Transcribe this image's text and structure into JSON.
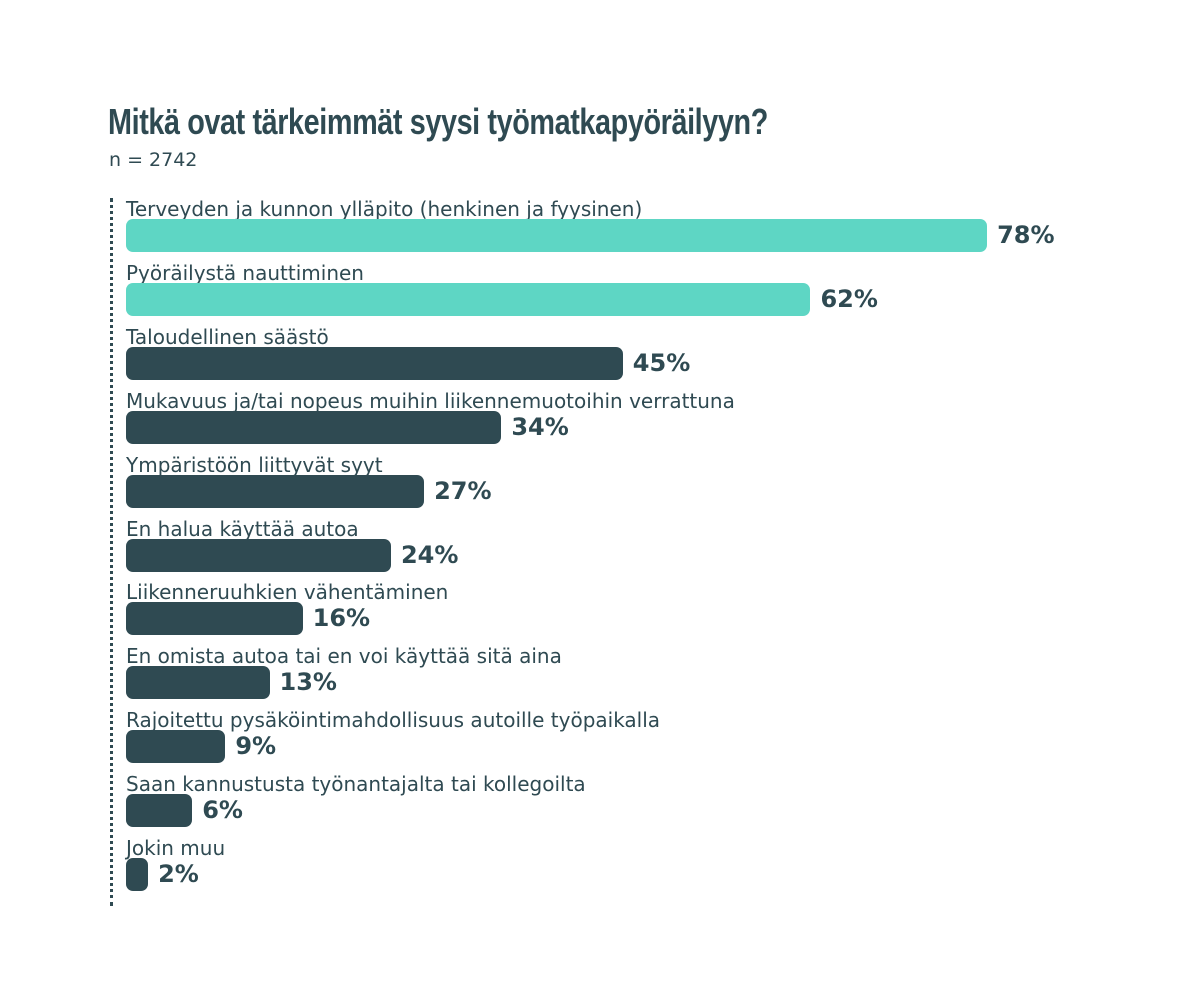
{
  "chart_data": {
    "type": "bar",
    "orientation": "horizontal",
    "title": "Mitkä ovat tärkeimmät syysi työmatkapyöräilyyn?",
    "subtitle": "n = 2742",
    "categories": [
      "Terveyden ja kunnon ylläpito (henkinen ja fyysinen)",
      "Pyöräilystä nauttiminen",
      "Taloudellinen säästö",
      "Mukavuus ja/tai nopeus muihin liikennemuotoihin verrattuna",
      "Ympäristöön liittyvät syyt",
      "En halua käyttää autoa",
      "Liikenneruuhkien vähentäminen",
      "En omista autoa tai en voi käyttää sitä aina",
      "Rajoitettu pysäköintimahdollisuus autoille työpaikalla",
      "Saan kannustusta työnantajalta tai kollegoilta",
      "Jokin muu"
    ],
    "values": [
      78,
      62,
      45,
      34,
      27,
      24,
      16,
      13,
      9,
      6,
      2
    ],
    "value_labels": [
      "78%",
      "62%",
      "45%",
      "34%",
      "27%",
      "24%",
      "16%",
      "13%",
      "9%",
      "6%",
      "2%"
    ],
    "unit": "%",
    "highlight_count": 2,
    "colors": {
      "highlight": "#5ed6c4",
      "default": "#2f4a52",
      "text": "#2f4a52"
    },
    "grid": false,
    "legend": "none"
  }
}
